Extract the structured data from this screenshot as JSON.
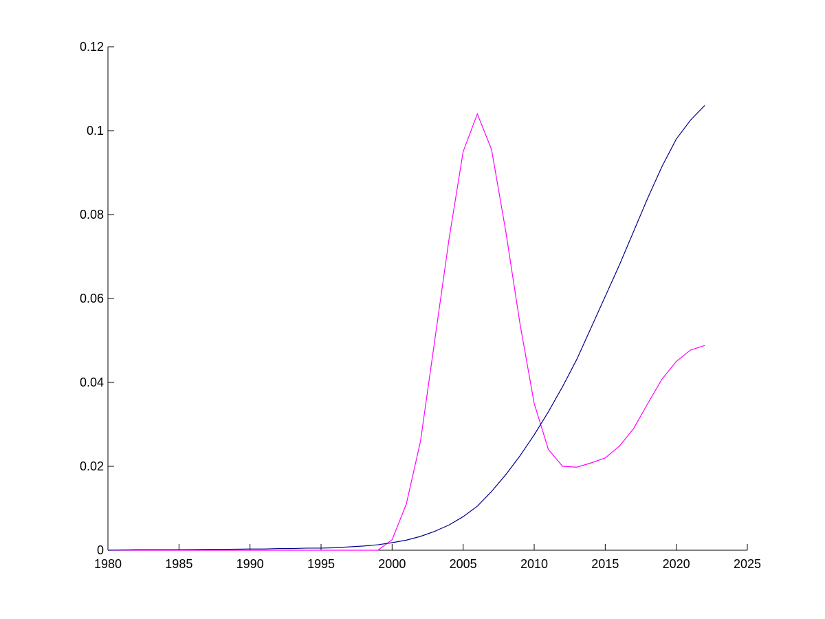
{
  "chart_data": {
    "type": "line",
    "x": [
      1980,
      1981,
      1982,
      1983,
      1984,
      1985,
      1986,
      1987,
      1988,
      1989,
      1990,
      1991,
      1992,
      1993,
      1994,
      1995,
      1996,
      1997,
      1998,
      1999,
      2000,
      2001,
      2002,
      2003,
      2004,
      2005,
      2006,
      2007,
      2008,
      2009,
      2010,
      2011,
      2012,
      2013,
      2014,
      2015,
      2016,
      2017,
      2018,
      2019,
      2020,
      2021,
      2022
    ],
    "series": [
      {
        "color": "#ff00ff",
        "values": [
          0,
          0,
          0,
          0,
          0,
          0,
          0,
          0,
          0,
          0,
          0,
          0,
          0,
          0,
          0,
          0,
          0,
          0,
          0,
          0,
          0.0025,
          0.011,
          0.026,
          0.05,
          0.074,
          0.095,
          0.104,
          0.0955,
          0.076,
          0.054,
          0.035,
          0.024,
          0.02,
          0.0198,
          0.0208,
          0.022,
          0.0248,
          0.029,
          0.035,
          0.0408,
          0.045,
          0.0477,
          0.0488
        ]
      },
      {
        "color": "#00008b",
        "values": [
          0,
          5e-05,
          0.0001,
          0.0001,
          0.0001,
          0.0001,
          0.00015,
          0.0002,
          0.0002,
          0.00025,
          0.0003,
          0.0003,
          0.0004,
          0.0004,
          0.0005,
          0.0005,
          0.0006,
          0.0008,
          0.001,
          0.0013,
          0.0018,
          0.0024,
          0.0033,
          0.0045,
          0.006,
          0.008,
          0.0105,
          0.014,
          0.018,
          0.0225,
          0.0275,
          0.033,
          0.039,
          0.0455,
          0.053,
          0.0605,
          0.068,
          0.076,
          0.084,
          0.0915,
          0.098,
          0.1025,
          0.106
        ]
      }
    ],
    "xlim": [
      1980,
      2025
    ],
    "xticks": [
      1980,
      1985,
      1990,
      1995,
      2000,
      2005,
      2010,
      2015,
      2020,
      2025
    ],
    "ylim": [
      0,
      0.12
    ],
    "yticks": [
      0,
      0.02,
      0.04,
      0.06,
      0.08,
      0.1,
      0.12
    ]
  }
}
